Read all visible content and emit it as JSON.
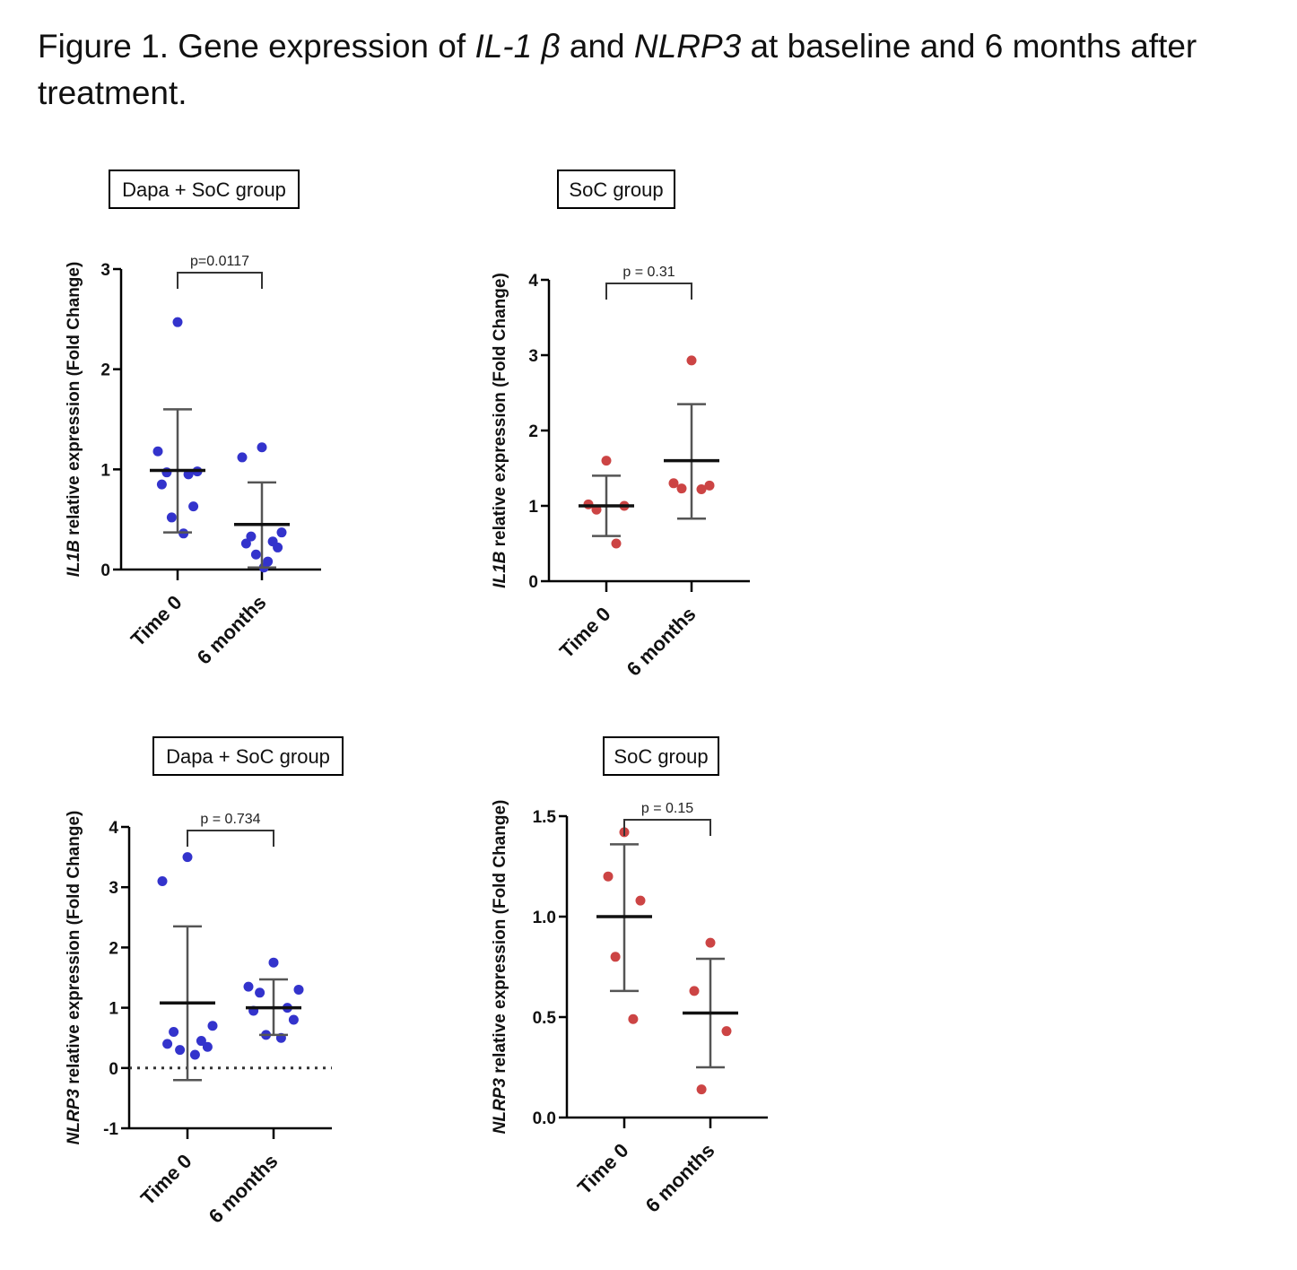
{
  "caption": {
    "prefix": "Figure 1. Gene expression of ",
    "gene1": "IL-1 β",
    "middle": " and ",
    "gene2": "NLRP3",
    "suffix": " at baseline and 6 months after treatment."
  },
  "colors": {
    "dapa_group": "#3333cc",
    "soc_group": "#cc4444",
    "axis": "#000000",
    "errorbar": "#555555"
  },
  "chart_data": [
    {
      "type": "scatter",
      "panel_title": "Dapa + SoC group",
      "ylabel_gene": "IL1B",
      "ylabel_rest": " relative expression (Fold Change)",
      "categories": [
        "Time 0",
        "6 months"
      ],
      "ylim": [
        0,
        3
      ],
      "yticks": [
        "0",
        "1",
        "2",
        "3"
      ],
      "ytick_values": [
        0,
        1,
        2,
        3
      ],
      "points": [
        [
          2.47,
          1.18,
          0.98,
          0.97,
          0.95,
          0.85,
          0.63,
          0.52,
          0.36
        ],
        [
          1.22,
          1.12,
          0.37,
          0.33,
          0.28,
          0.26,
          0.22,
          0.15,
          0.08,
          0.02
        ]
      ],
      "means": [
        0.99,
        0.45
      ],
      "sd_low": [
        0.37,
        0.02
      ],
      "sd_high": [
        1.6,
        0.87
      ],
      "pvalue": "p=0.0117",
      "zero_line_dotted": false,
      "color_key": "dapa_group"
    },
    {
      "type": "scatter",
      "panel_title": "SoC group",
      "ylabel_gene": "IL1B",
      "ylabel_rest": " relative expression (Fold Change)",
      "categories": [
        "Time 0",
        "6 months"
      ],
      "ylim": [
        0,
        4
      ],
      "yticks": [
        "0",
        "1",
        "2",
        "3",
        "4"
      ],
      "ytick_values": [
        0,
        1,
        2,
        3,
        4
      ],
      "points": [
        [
          1.6,
          1.02,
          1.0,
          0.95,
          0.5
        ],
        [
          2.93,
          1.3,
          1.27,
          1.23,
          1.22
        ]
      ],
      "means": [
        1.0,
        1.6
      ],
      "sd_low": [
        0.6,
        0.83
      ],
      "sd_high": [
        1.4,
        2.35
      ],
      "pvalue": "p = 0.31",
      "zero_line_dotted": false,
      "color_key": "soc_group"
    },
    {
      "type": "scatter",
      "panel_title": "Dapa + SoC group",
      "ylabel_gene": "NLRP3",
      "ylabel_rest": " relative expression (Fold Change)",
      "categories": [
        "Time 0",
        "6 months"
      ],
      "ylim": [
        -1,
        4
      ],
      "yticks": [
        "-1",
        "0",
        "1",
        "2",
        "3",
        "4"
      ],
      "ytick_values": [
        -1,
        0,
        1,
        2,
        3,
        4
      ],
      "points": [
        [
          3.5,
          3.1,
          0.7,
          0.6,
          0.45,
          0.4,
          0.35,
          0.3,
          0.22
        ],
        [
          1.75,
          1.35,
          1.3,
          1.25,
          1.0,
          0.95,
          0.8,
          0.55,
          0.5
        ]
      ],
      "means": [
        1.08,
        1.0
      ],
      "sd_low": [
        -0.2,
        0.55
      ],
      "sd_high": [
        2.35,
        1.47
      ],
      "pvalue": "p = 0.734",
      "zero_line_dotted": true,
      "color_key": "dapa_group"
    },
    {
      "type": "scatter",
      "panel_title": "SoC group",
      "ylabel_gene": "NLRP3",
      "ylabel_rest": " relative expression (Fold Change)",
      "categories": [
        "Time 0",
        "6 months"
      ],
      "ylim": [
        0,
        1.5
      ],
      "yticks": [
        "0.0",
        "0.5",
        "1.0",
        "1.5"
      ],
      "ytick_values": [
        0,
        0.5,
        1.0,
        1.5
      ],
      "points": [
        [
          1.42,
          1.2,
          1.08,
          0.8,
          0.49
        ],
        [
          0.87,
          0.63,
          0.43,
          0.14
        ]
      ],
      "means": [
        1.0,
        0.52
      ],
      "sd_low": [
        0.63,
        0.25
      ],
      "sd_high": [
        1.36,
        0.79
      ],
      "pvalue": "p = 0.15",
      "zero_line_dotted": false,
      "color_key": "soc_group"
    }
  ]
}
